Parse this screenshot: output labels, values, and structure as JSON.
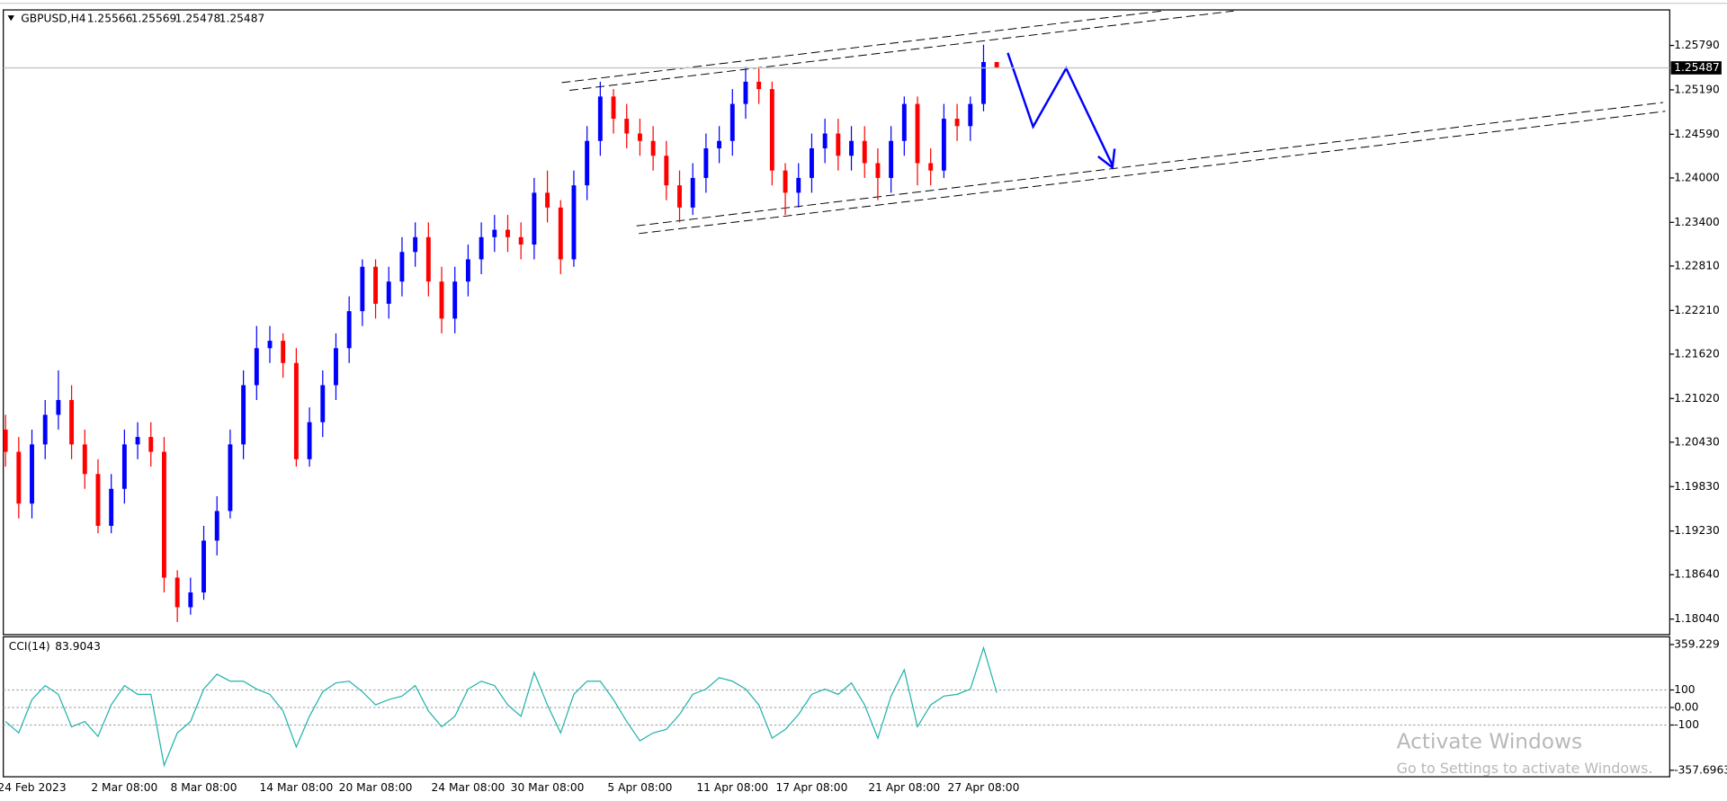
{
  "chart_data": [
    {
      "type": "candlestick",
      "title": "GBPUSD,H4",
      "up_color": "#0000ff",
      "down_color": "#ff0000",
      "grid": false,
      "categories": [
        null,
        null,
        "24 Feb 2023",
        null,
        null,
        null,
        null,
        null,
        null,
        "2 Mar 08:00",
        null,
        null,
        null,
        null,
        null,
        "8 Mar 08:00",
        null,
        null,
        null,
        null,
        null,
        null,
        "14 Mar 08:00",
        null,
        null,
        null,
        null,
        null,
        "20 Mar 08:00",
        null,
        null,
        null,
        null,
        null,
        null,
        "24 Mar 08:00",
        null,
        null,
        null,
        null,
        null,
        "30 Mar 08:00",
        null,
        null,
        null,
        null,
        null,
        null,
        "5 Apr 08:00",
        null,
        null,
        null,
        null,
        null,
        null,
        "11 Apr 08:00",
        null,
        null,
        null,
        null,
        null,
        "17 Apr 08:00",
        null,
        null,
        null,
        null,
        null,
        null,
        "21 Apr 08:00",
        null,
        null,
        null,
        null,
        null,
        "27 Apr 08:00",
        null
      ],
      "open": [
        1.206,
        1.203,
        1.196,
        1.204,
        1.208,
        1.21,
        1.204,
        1.2,
        1.193,
        1.198,
        1.204,
        1.205,
        1.203,
        1.186,
        1.182,
        1.184,
        1.191,
        1.195,
        1.204,
        1.212,
        1.217,
        1.218,
        1.215,
        1.202,
        1.207,
        1.212,
        1.217,
        1.222,
        1.228,
        1.223,
        1.226,
        1.23,
        1.232,
        1.226,
        1.221,
        1.226,
        1.229,
        1.232,
        1.233,
        1.232,
        1.231,
        1.238,
        1.236,
        1.229,
        1.239,
        1.245,
        1.251,
        1.248,
        1.246,
        1.245,
        1.243,
        1.239,
        1.236,
        1.24,
        1.244,
        1.245,
        1.25,
        1.253,
        1.252,
        1.241,
        1.238,
        1.24,
        1.244,
        1.246,
        1.243,
        1.245,
        1.242,
        1.24,
        1.245,
        1.25,
        1.242,
        1.241,
        1.248,
        1.247,
        1.25,
        1.25566
      ],
      "high": [
        1.208,
        1.205,
        1.206,
        1.21,
        1.214,
        1.212,
        1.206,
        1.202,
        1.2,
        1.206,
        1.207,
        1.207,
        1.205,
        1.187,
        1.186,
        1.193,
        1.197,
        1.206,
        1.214,
        1.22,
        1.22,
        1.219,
        1.217,
        1.209,
        1.214,
        1.219,
        1.224,
        1.229,
        1.229,
        1.228,
        1.232,
        1.234,
        1.234,
        1.228,
        1.228,
        1.231,
        1.234,
        1.235,
        1.235,
        1.234,
        1.24,
        1.241,
        1.237,
        1.241,
        1.247,
        1.253,
        1.252,
        1.25,
        1.248,
        1.247,
        1.245,
        1.241,
        1.242,
        1.246,
        1.247,
        1.252,
        1.255,
        1.255,
        1.253,
        1.242,
        1.242,
        1.246,
        1.248,
        1.248,
        1.247,
        1.247,
        1.244,
        1.247,
        1.251,
        1.251,
        1.244,
        1.25,
        1.25,
        1.251,
        1.258,
        1.25569
      ],
      "low": [
        1.201,
        1.194,
        1.194,
        1.202,
        1.206,
        1.202,
        1.198,
        1.192,
        1.192,
        1.196,
        1.202,
        1.201,
        1.184,
        1.18,
        1.181,
        1.183,
        1.189,
        1.194,
        1.202,
        1.21,
        1.215,
        1.213,
        1.201,
        1.201,
        1.205,
        1.21,
        1.215,
        1.22,
        1.221,
        1.221,
        1.224,
        1.228,
        1.224,
        1.219,
        1.219,
        1.224,
        1.227,
        1.23,
        1.23,
        1.229,
        1.229,
        1.234,
        1.227,
        1.228,
        1.237,
        1.243,
        1.246,
        1.244,
        1.243,
        1.241,
        1.237,
        1.234,
        1.235,
        1.238,
        1.242,
        1.243,
        1.248,
        1.25,
        1.239,
        1.235,
        1.236,
        1.238,
        1.242,
        1.241,
        1.241,
        1.24,
        1.237,
        1.238,
        1.243,
        1.239,
        1.239,
        1.24,
        1.245,
        1.245,
        1.249,
        1.25478
      ],
      "close": [
        1.203,
        1.196,
        1.204,
        1.208,
        1.21,
        1.204,
        1.2,
        1.193,
        1.198,
        1.204,
        1.205,
        1.203,
        1.186,
        1.182,
        1.184,
        1.191,
        1.195,
        1.204,
        1.212,
        1.217,
        1.218,
        1.215,
        1.202,
        1.207,
        1.212,
        1.217,
        1.222,
        1.228,
        1.223,
        1.226,
        1.23,
        1.232,
        1.226,
        1.221,
        1.226,
        1.229,
        1.232,
        1.233,
        1.232,
        1.231,
        1.238,
        1.236,
        1.229,
        1.239,
        1.245,
        1.251,
        1.248,
        1.246,
        1.245,
        1.243,
        1.239,
        1.236,
        1.24,
        1.244,
        1.245,
        1.25,
        1.253,
        1.252,
        1.241,
        1.238,
        1.24,
        1.244,
        1.246,
        1.243,
        1.245,
        1.242,
        1.24,
        1.245,
        1.25,
        1.242,
        1.241,
        1.248,
        1.247,
        1.25,
        1.25566,
        1.25487
      ],
      "ylim": [
        1.1783,
        1.2627
      ],
      "yticks": [
        {
          "value": 1.2579,
          "label": "1.25790"
        },
        {
          "value": 1.2519,
          "label": "1.25190"
        },
        {
          "value": 1.2459,
          "label": "1.24590"
        },
        {
          "value": 1.24,
          "label": "1.24000"
        },
        {
          "value": 1.234,
          "label": "1.23400"
        },
        {
          "value": 1.2281,
          "label": "1.22810"
        },
        {
          "value": 1.2221,
          "label": "1.22210"
        },
        {
          "value": 1.2162,
          "label": "1.21620"
        },
        {
          "value": 1.2102,
          "label": "1.21020"
        },
        {
          "value": 1.2043,
          "label": "1.20430"
        },
        {
          "value": 1.1983,
          "label": "1.19830"
        },
        {
          "value": 1.1923,
          "label": "1.19230"
        },
        {
          "value": 1.1864,
          "label": "1.18640"
        },
        {
          "value": 1.1804,
          "label": "1.18040"
        }
      ]
    },
    {
      "type": "line",
      "title": "CCI(14)",
      "color": "#20b2aa",
      "values": [
        -80,
        -145,
        45,
        125,
        75,
        -110,
        -80,
        -165,
        15,
        125,
        75,
        75,
        -330,
        -145,
        -80,
        105,
        190,
        150,
        150,
        105,
        75,
        -20,
        -225,
        -50,
        90,
        140,
        150,
        90,
        15,
        45,
        65,
        125,
        -20,
        -110,
        -50,
        105,
        150,
        125,
        15,
        -50,
        200,
        15,
        -145,
        75,
        150,
        150,
        45,
        -80,
        -190,
        -145,
        -125,
        -40,
        75,
        105,
        170,
        150,
        105,
        15,
        -175,
        -125,
        -40,
        75,
        105,
        75,
        140,
        15,
        -175,
        65,
        215,
        -110,
        15,
        65,
        75,
        105,
        340,
        83.9043
      ],
      "ylim": [
        -395,
        403
      ],
      "yticks": [
        359.229,
        100,
        {
          "value": 0,
          "label": "0.00"
        },
        -100,
        -357.6963
      ],
      "levels": [
        100,
        0,
        -100
      ]
    }
  ],
  "watermark": {
    "title": "Activate Windows",
    "text": "Go to Settings to activate Windows."
  }
}
